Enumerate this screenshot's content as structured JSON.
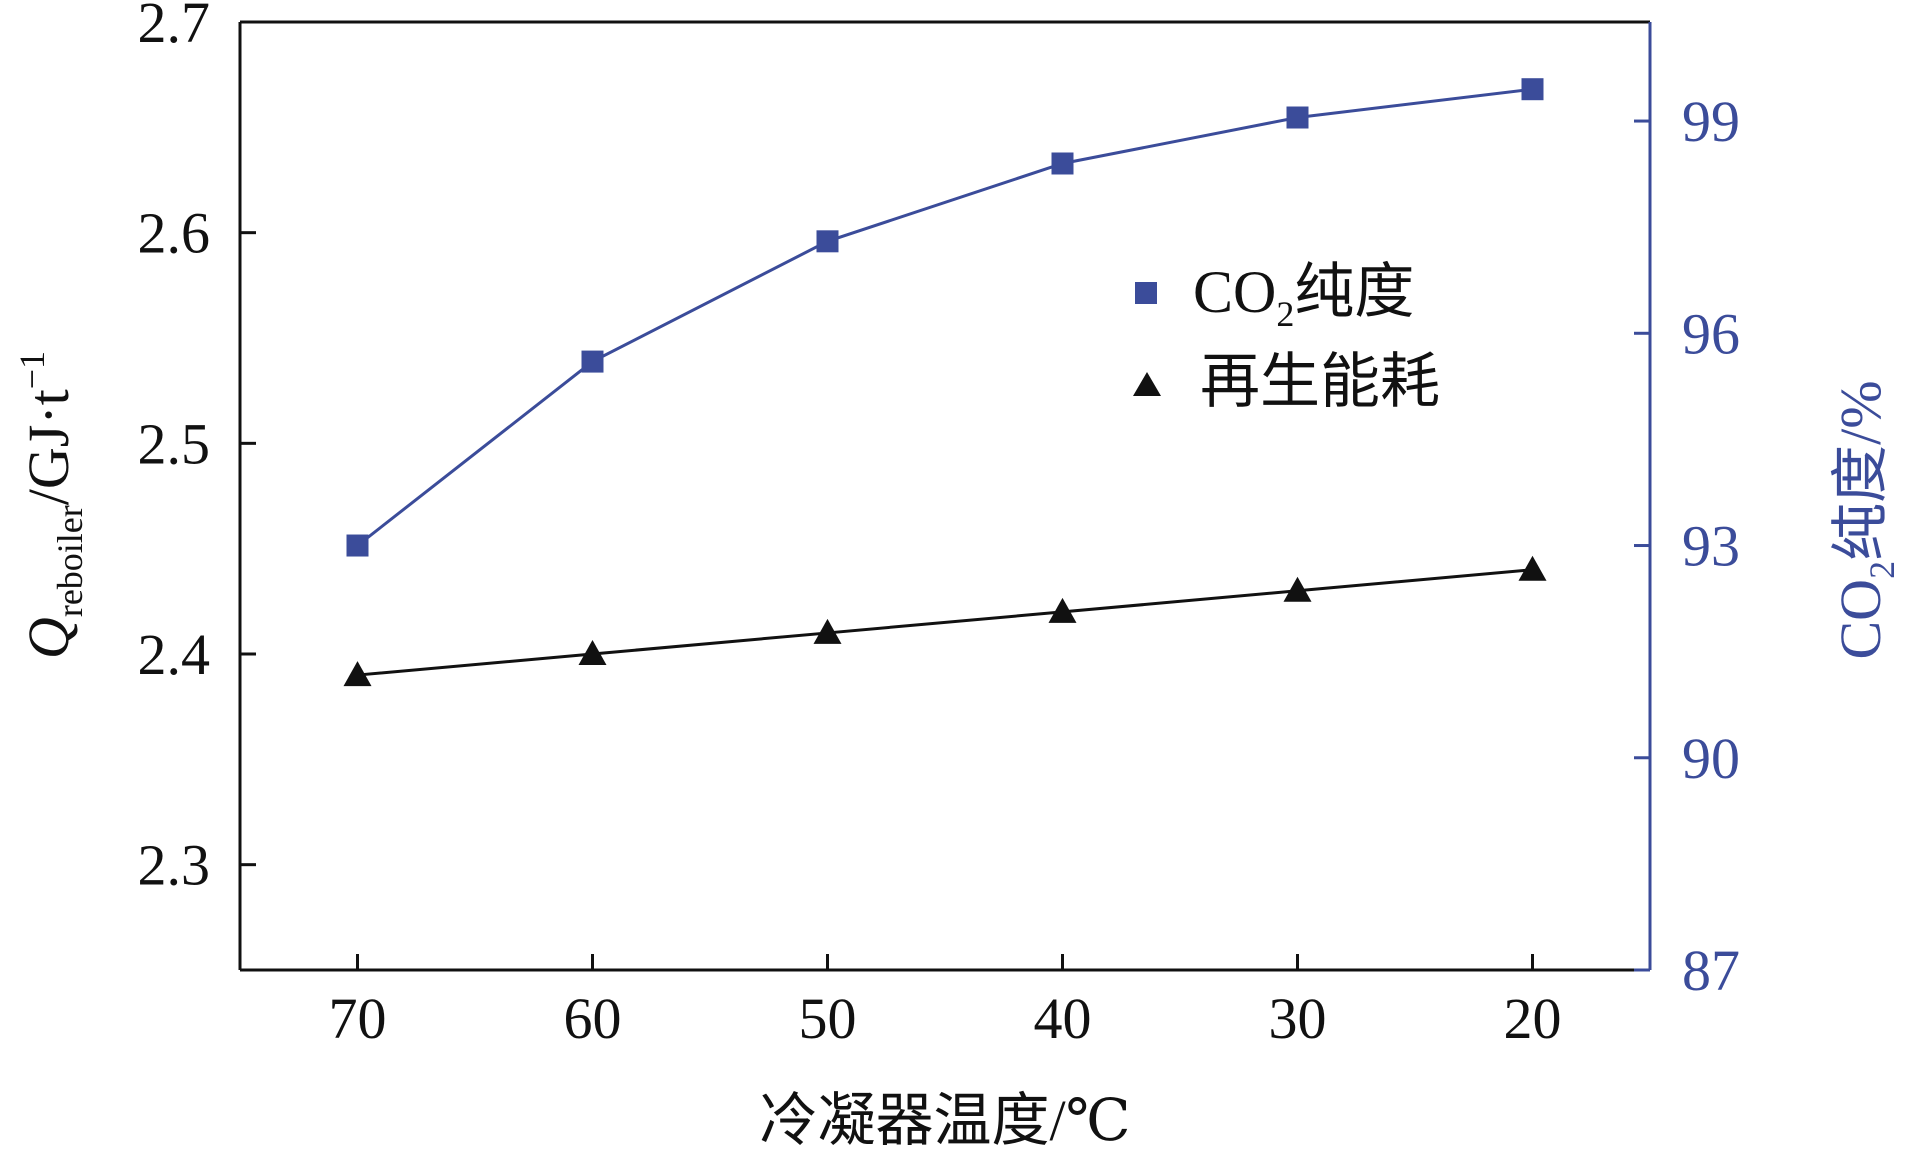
{
  "chart_data": {
    "type": "line",
    "x": [
      70,
      60,
      50,
      40,
      30,
      20
    ],
    "x_ticks": [
      "70",
      "60",
      "50",
      "40",
      "30",
      "20"
    ],
    "xlabel": "冷凝器温度/℃",
    "xlim": [
      75,
      15
    ],
    "y_left": {
      "label_main": "Q",
      "label_sub": "reboiler",
      "label_unit": "/GJ·t",
      "label_sup": "−1",
      "lim": [
        2.25,
        2.7
      ],
      "ticks": [
        "2.3",
        "2.4",
        "2.5",
        "2.6",
        "2.7"
      ]
    },
    "y_right": {
      "label_main": "CO",
      "label_sub": "2",
      "label_rest": "纯度/%",
      "lim": [
        87,
        100.4
      ],
      "ticks": [
        "87",
        "90",
        "93",
        "96",
        "99"
      ],
      "color": "#3b4c9a"
    },
    "series": [
      {
        "name_main": "CO",
        "name_sub": "2",
        "name_rest": "纯度",
        "axis": "right",
        "marker": "square",
        "color": "#3b4c9a",
        "values": [
          93.0,
          95.6,
          97.3,
          98.4,
          99.05,
          99.45
        ]
      },
      {
        "name": "再生能耗",
        "axis": "left",
        "marker": "triangle",
        "color": "#111111",
        "values": [
          2.39,
          2.4,
          2.41,
          2.42,
          2.43,
          2.44
        ]
      }
    ],
    "grid": false,
    "legend_position": "upper-right-inside"
  }
}
